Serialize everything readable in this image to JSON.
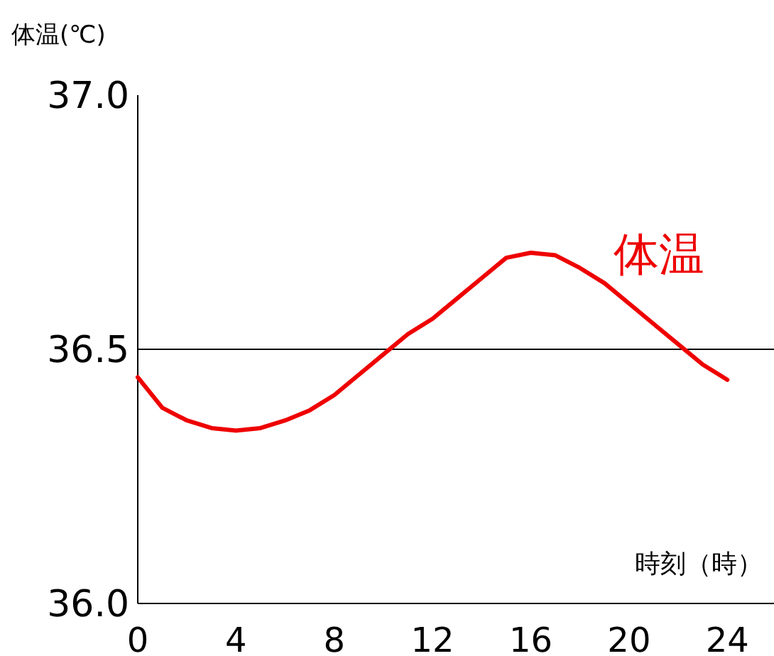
{
  "chart_data": {
    "type": "line",
    "ylabel": "体温(℃)",
    "xlabel": "時刻（時）",
    "x": [
      0,
      1,
      2,
      3,
      4,
      5,
      6,
      7,
      8,
      9,
      10,
      11,
      12,
      13,
      14,
      15,
      16,
      17,
      18,
      19,
      20,
      21,
      22,
      23,
      24
    ],
    "series": [
      {
        "name": "体温",
        "color": "#ee0000",
        "values": [
          36.445,
          36.385,
          36.36,
          36.345,
          36.34,
          36.345,
          36.36,
          36.38,
          36.41,
          36.45,
          36.49,
          36.53,
          36.56,
          36.6,
          36.64,
          36.68,
          36.69,
          36.685,
          36.66,
          36.63,
          36.59,
          36.55,
          36.51,
          36.47,
          36.44
        ]
      }
    ],
    "xlim": [
      0,
      25.9
    ],
    "ylim": [
      36.0,
      37.0
    ],
    "xticks": [
      0,
      4,
      8,
      12,
      16,
      20,
      24
    ],
    "yticks": [
      {
        "value": 36.0,
        "label": "36.0"
      },
      {
        "value": 36.5,
        "label": "36.5"
      },
      {
        "value": 37.0,
        "label": "37.0"
      }
    ],
    "ref_lines": [
      {
        "axis": "y",
        "value": 36.5,
        "color": "#000000"
      }
    ],
    "grid": false
  }
}
